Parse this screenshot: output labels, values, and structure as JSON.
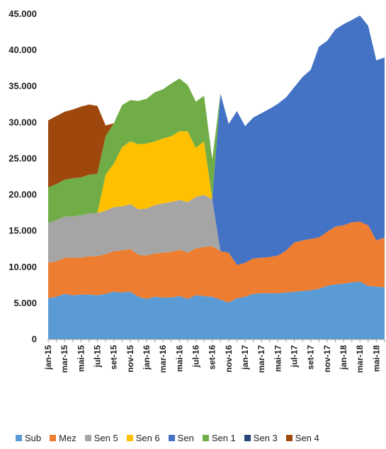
{
  "chart_data": {
    "type": "area",
    "stacked": true,
    "title": "",
    "xlabel": "",
    "ylabel": "",
    "ylim": [
      0,
      45000
    ],
    "y_ticks": [
      "0",
      "5.000",
      "10.000",
      "15.000",
      "20.000",
      "25.000",
      "30.000",
      "35.000",
      "40.000",
      "45.000"
    ],
    "y_tick_values": [
      0,
      5000,
      10000,
      15000,
      20000,
      25000,
      30000,
      35000,
      40000,
      45000
    ],
    "x": [
      "jan-15",
      "fev-15",
      "mar-15",
      "abr-15",
      "mai-15",
      "jun-15",
      "jul-15",
      "ago-15",
      "set-15",
      "out-15",
      "nov-15",
      "dez-15",
      "jan-16",
      "fev-16",
      "mar-16",
      "abr-16",
      "mai-16",
      "jun-16",
      "jul-16",
      "ago-16",
      "set-16",
      "out-16",
      "nov-16",
      "dez-16",
      "jan-17",
      "fev-17",
      "mar-17",
      "abr-17",
      "mai-17",
      "jun-17",
      "jul-17",
      "ago-17",
      "set-17",
      "out-17",
      "nov-17",
      "dez-17",
      "jan-18",
      "fev-18",
      "mar-18",
      "abr-18",
      "mai-18",
      "jun-18"
    ],
    "x_tick_labels": [
      {
        "index": 0,
        "label": "jan-15"
      },
      {
        "index": 2,
        "label": "mar-15"
      },
      {
        "index": 4,
        "label": "mai-15"
      },
      {
        "index": 6,
        "label": "jul-15"
      },
      {
        "index": 8,
        "label": "set-15"
      },
      {
        "index": 10,
        "label": "nov-15"
      },
      {
        "index": 12,
        "label": "jan-16"
      },
      {
        "index": 14,
        "label": "mar-16"
      },
      {
        "index": 16,
        "label": "mai-16"
      },
      {
        "index": 18,
        "label": "jul-16"
      },
      {
        "index": 20,
        "label": "set-16"
      },
      {
        "index": 22,
        "label": "nov-16"
      },
      {
        "index": 24,
        "label": "jan-17"
      },
      {
        "index": 26,
        "label": "mar-17"
      },
      {
        "index": 28,
        "label": "mai-17"
      },
      {
        "index": 30,
        "label": "jul-17"
      },
      {
        "index": 32,
        "label": "set-17"
      },
      {
        "index": 34,
        "label": "nov-17"
      },
      {
        "index": 36,
        "label": "jan-18"
      },
      {
        "index": 38,
        "label": "mar-18"
      },
      {
        "index": 40,
        "label": "mai-18"
      }
    ],
    "series": [
      {
        "name": "Sub",
        "color": "#5B9BD5",
        "values": [
          5700,
          5900,
          6300,
          6100,
          6200,
          6200,
          6100,
          6300,
          6600,
          6500,
          6600,
          5900,
          5600,
          5900,
          5800,
          5800,
          6000,
          5600,
          6100,
          6000,
          5900,
          5500,
          5100,
          5700,
          5900,
          6300,
          6400,
          6400,
          6400,
          6500,
          6600,
          6700,
          6800,
          7000,
          7400,
          7600,
          7700,
          7900,
          8000,
          7400,
          7300,
          7200
        ]
      },
      {
        "name": "Mez",
        "color": "#ED7D31",
        "values": [
          4900,
          4900,
          5000,
          5200,
          5100,
          5300,
          5400,
          5500,
          5600,
          5800,
          5900,
          5800,
          6000,
          6000,
          6200,
          6300,
          6400,
          6400,
          6500,
          6800,
          7000,
          6700,
          6900,
          4600,
          4700,
          4900,
          4900,
          5000,
          5200,
          5800,
          6800,
          7000,
          7100,
          7100,
          7500,
          8000,
          8100,
          8300,
          8300,
          8400,
          6400,
          6900
        ]
      },
      {
        "name": "Sen 5",
        "color": "#A5A5A5",
        "values": [
          5500,
          5700,
          5700,
          5700,
          5900,
          5900,
          6000,
          6000,
          6100,
          6100,
          6200,
          6300,
          6500,
          6700,
          6800,
          6900,
          6900,
          7000,
          7100,
          7200,
          6500,
          0,
          0,
          0,
          0,
          0,
          0,
          0,
          0,
          0,
          0,
          0,
          0,
          0,
          0,
          0,
          0,
          0,
          0,
          0,
          0,
          0
        ]
      },
      {
        "name": "Sen 6",
        "color": "#FFC000",
        "values": [
          0,
          0,
          0,
          0,
          0,
          0,
          0,
          5000,
          6000,
          8200,
          8700,
          9000,
          9000,
          8800,
          9000,
          9100,
          9500,
          9800,
          6800,
          7400,
          0,
          0,
          0,
          0,
          0,
          0,
          0,
          0,
          0,
          0,
          0,
          0,
          0,
          0,
          0,
          0,
          0,
          0,
          0,
          0,
          0,
          0
        ]
      },
      {
        "name": "Sen",
        "color": "#4472C4",
        "values": [
          0,
          0,
          0,
          0,
          0,
          0,
          0,
          0,
          0,
          0,
          0,
          0,
          0,
          0,
          0,
          0,
          0,
          0,
          0,
          0,
          0,
          21800,
          17800,
          21300,
          18900,
          19500,
          20000,
          20500,
          21000,
          21200,
          21500,
          22600,
          23400,
          26400,
          26400,
          27300,
          27800,
          28000,
          28500,
          27600,
          24900,
          24900
        ]
      },
      {
        "name": "Sen 1",
        "color": "#70AD47",
        "values": [
          4900,
          5000,
          5100,
          5300,
          5200,
          5400,
          5400,
          5300,
          5600,
          5800,
          5700,
          6000,
          6200,
          6800,
          6800,
          7300,
          7300,
          6400,
          6400,
          6300,
          5500,
          0,
          0,
          0,
          0,
          0,
          0,
          0,
          0,
          0,
          0,
          0,
          0,
          0,
          0,
          0,
          0,
          0,
          0,
          0,
          0,
          0
        ]
      },
      {
        "name": "Sen 3",
        "color": "#264478",
        "values": [
          0,
          0,
          0,
          0,
          0,
          0,
          0,
          0,
          0,
          0,
          0,
          0,
          0,
          0,
          0,
          0,
          0,
          0,
          0,
          0,
          0,
          0,
          0,
          0,
          0,
          0,
          0,
          0,
          0,
          0,
          0,
          0,
          0,
          0,
          0,
          0,
          0,
          0,
          0,
          0,
          0,
          0
        ]
      },
      {
        "name": "Sen 4",
        "color": "#9E480E",
        "values": [
          9300,
          9400,
          9400,
          9500,
          9800,
          9700,
          9400,
          1500,
          0,
          0,
          0,
          0,
          0,
          0,
          0,
          0,
          0,
          0,
          0,
          0,
          0,
          0,
          0,
          0,
          0,
          0,
          0,
          0,
          0,
          0,
          0,
          0,
          0,
          0,
          0,
          0,
          0,
          0,
          0,
          0,
          0,
          0
        ]
      }
    ],
    "legend_position": "bottom",
    "grid": false
  }
}
